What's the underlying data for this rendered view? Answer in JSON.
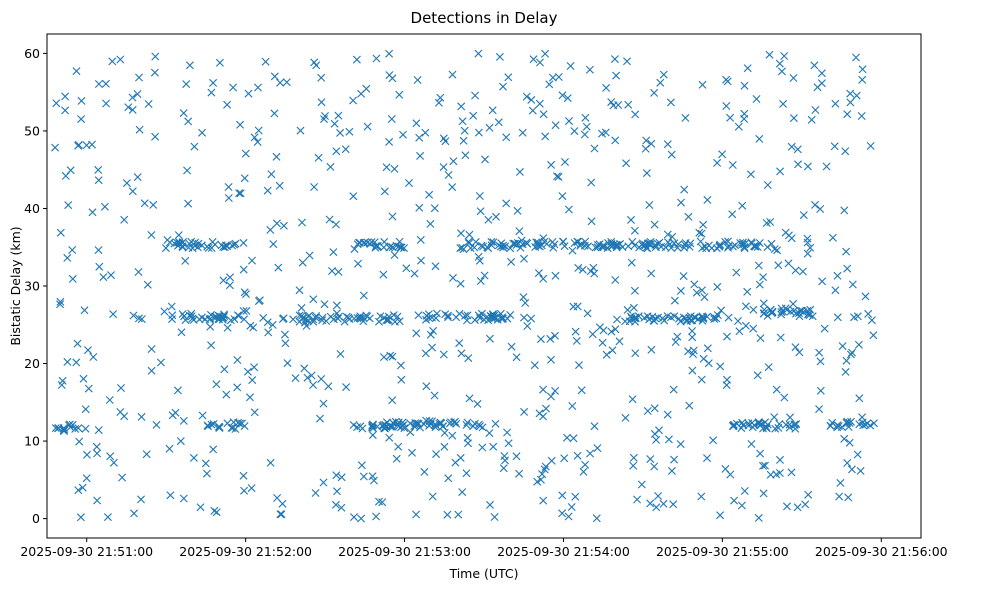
{
  "chart_data": {
    "type": "scatter",
    "title": "Detections in Delay",
    "xlabel": "Time (UTC)",
    "ylabel": "Bistatic Delay (km)",
    "marker": "x",
    "color": "#1f77b4",
    "xlim_seconds": [
      -15,
      315
    ],
    "ylim": [
      -2.5,
      62.5
    ],
    "xticks": [
      {
        "t": 0,
        "label": "2025-09-30 21:51:00"
      },
      {
        "t": 60,
        "label": "2025-09-30 21:52:00"
      },
      {
        "t": 120,
        "label": "2025-09-30 21:53:00"
      },
      {
        "t": 180,
        "label": "2025-09-30 21:54:00"
      },
      {
        "t": 240,
        "label": "2025-09-30 21:55:00"
      },
      {
        "t": 300,
        "label": "2025-09-30 21:56:00"
      }
    ],
    "yticks": [
      0,
      10,
      20,
      30,
      40,
      50,
      60
    ],
    "time_range_seconds": [
      -12,
      298
    ],
    "tracks": [
      {
        "name": "track-12km",
        "segments": [
          [
            -12,
            0,
            11.8
          ],
          [
            45,
            60,
            12.0
          ],
          [
            100,
            120,
            12.0
          ],
          [
            110,
            150,
            12.2
          ],
          [
            240,
            270,
            12.0
          ],
          [
            280,
            298,
            12.2
          ]
        ]
      },
      {
        "name": "track-26km",
        "segments": [
          [
            30,
            60,
            26.0
          ],
          [
            80,
            120,
            25.8
          ],
          [
            125,
            160,
            26.0
          ],
          [
            200,
            240,
            25.8
          ],
          [
            250,
            275,
            26.5
          ]
        ]
      },
      {
        "name": "track-35km",
        "segments": [
          [
            30,
            60,
            35.3
          ],
          [
            100,
            120,
            35.3
          ],
          [
            140,
            200,
            35.3
          ],
          [
            200,
            260,
            35.3
          ]
        ]
      }
    ],
    "note": "Approximately 1000 detections: mostly uniform random clutter between 0 and 60 km over the full time span, plus dense track-like bands near 12 km, 26 km and 35 km."
  }
}
